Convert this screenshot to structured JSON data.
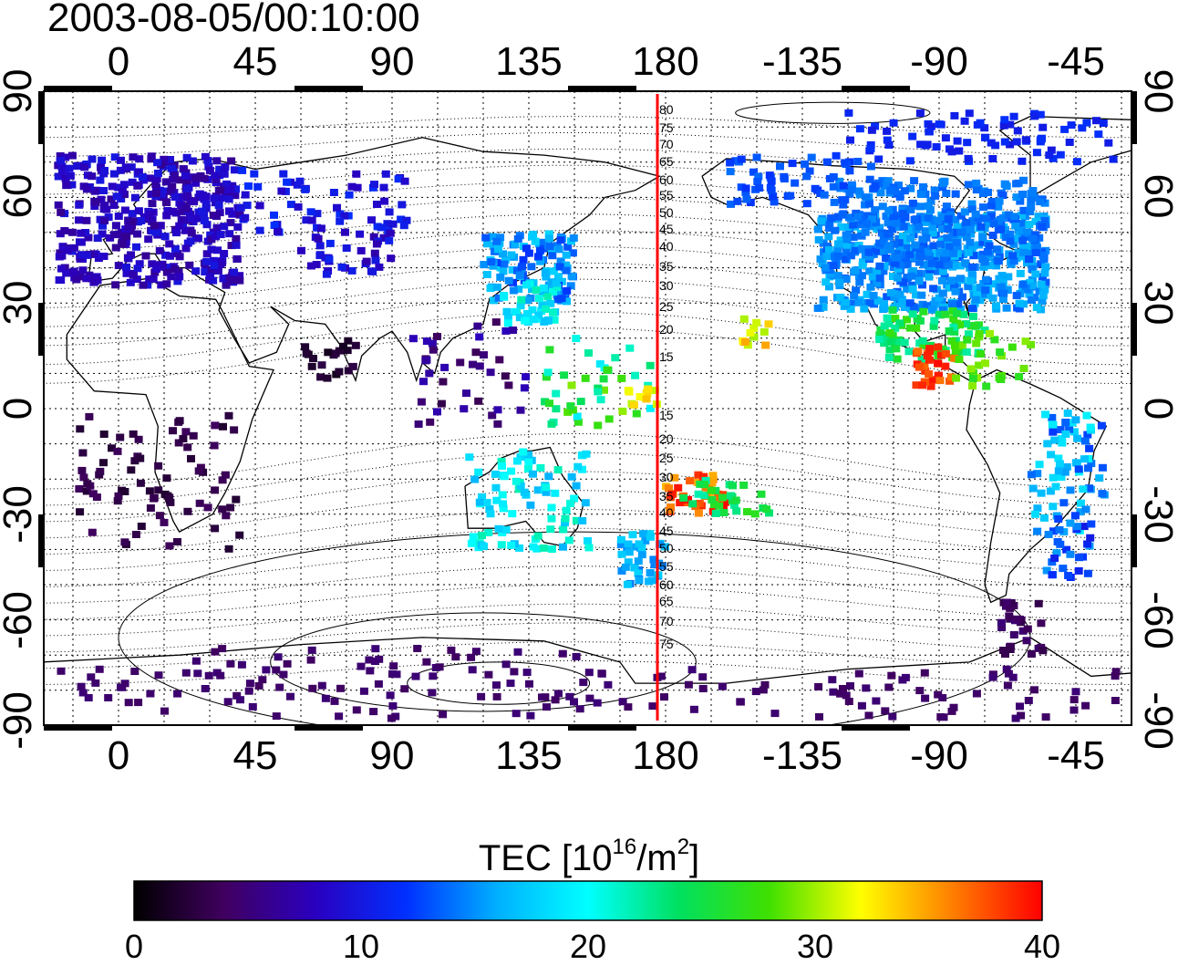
{
  "title": "2003-08-05/00:10:00",
  "map": {
    "x_ticks": [
      "0",
      "45",
      "90",
      "135",
      "180",
      "-135",
      "-90",
      "-45"
    ],
    "y_ticks": [
      "90",
      "60",
      "30",
      "0",
      "-30",
      "-60",
      "-90"
    ],
    "meridian_line_color": "#ff0000",
    "latitude_labels": [
      "80",
      "75",
      "70",
      "65",
      "60",
      "55",
      "50",
      "45",
      "40",
      "35",
      "30",
      "25",
      "20",
      "15",
      "15",
      "20",
      "25",
      "30",
      "35",
      "40",
      "45",
      "50",
      "55",
      "60",
      "65",
      "70",
      "75"
    ]
  },
  "colorbar": {
    "label_text": "TEC  [10",
    "label_sup1": "16",
    "label_mid": "/m",
    "label_sup2": "2",
    "label_end": "]",
    "min": 0,
    "max": 40,
    "ticks": [
      "0",
      "10",
      "20",
      "30",
      "40"
    ],
    "colors": [
      "#000000",
      "#400060",
      "#2a00c0",
      "#0030ff",
      "#00b0ff",
      "#00ffff",
      "#00e060",
      "#40e000",
      "#ffff00",
      "#ff8000",
      "#ff0000"
    ]
  }
}
